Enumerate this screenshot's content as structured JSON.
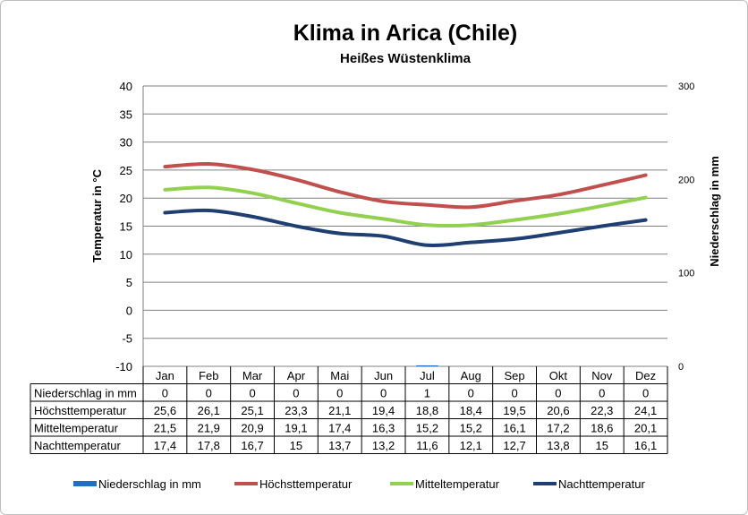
{
  "chart_data": {
    "type": "line",
    "title": "Klima in Arica (Chile)",
    "subtitle": "Heißes Wüstenklima",
    "ylabel_left": "Temperatur in °C",
    "ylabel_right": "Niederschlag in mm",
    "ylim_left": [
      -10,
      40
    ],
    "yticks_left": [
      "40",
      "35",
      "30",
      "25",
      "20",
      "15",
      "10",
      "5",
      "0",
      "-5",
      "-10"
    ],
    "ylim_right": [
      0,
      300
    ],
    "yticks_right": [
      "300",
      "200",
      "100",
      "0"
    ],
    "grid": true,
    "legend_position": "bottom",
    "categories": [
      "Jan",
      "Feb",
      "Mar",
      "Apr",
      "Mai",
      "Jun",
      "Jul",
      "Aug",
      "Sep",
      "Okt",
      "Nov",
      "Dez"
    ],
    "series": [
      {
        "name": "Niederschlag in mm",
        "kind": "bar",
        "axis": "right",
        "color": "#1f6fc5",
        "values": [
          0,
          0,
          0,
          0,
          0,
          0,
          1,
          0,
          0,
          0,
          0,
          0
        ]
      },
      {
        "name": "Höchsttemperatur",
        "kind": "line",
        "axis": "left",
        "color": "#c0504d",
        "values": [
          25.6,
          26.1,
          25.1,
          23.3,
          21.1,
          19.4,
          18.8,
          18.4,
          19.5,
          20.6,
          22.3,
          24.1
        ]
      },
      {
        "name": "Mitteltemperatur",
        "kind": "line",
        "axis": "left",
        "color": "#92d050",
        "values": [
          21.5,
          21.9,
          20.9,
          19.1,
          17.4,
          16.3,
          15.2,
          15.2,
          16.1,
          17.2,
          18.6,
          20.1
        ]
      },
      {
        "name": "Nachttemperatur",
        "kind": "line",
        "axis": "left",
        "color": "#1f3f73",
        "values": [
          17.4,
          17.8,
          16.7,
          15,
          13.7,
          13.2,
          11.6,
          12.1,
          12.7,
          13.8,
          15,
          16.1
        ]
      }
    ],
    "table_rows": [
      {
        "label": "Niederschlag in mm",
        "cells": [
          "0",
          "0",
          "0",
          "0",
          "0",
          "0",
          "1",
          "0",
          "0",
          "0",
          "0",
          "0"
        ]
      },
      {
        "label": "Höchsttemperatur",
        "cells": [
          "25,6",
          "26,1",
          "25,1",
          "23,3",
          "21,1",
          "19,4",
          "18,8",
          "18,4",
          "19,5",
          "20,6",
          "22,3",
          "24,1"
        ]
      },
      {
        "label": "Mitteltemperatur",
        "cells": [
          "21,5",
          "21,9",
          "20,9",
          "19,1",
          "17,4",
          "16,3",
          "15,2",
          "15,2",
          "16,1",
          "17,2",
          "18,6",
          "20,1"
        ]
      },
      {
        "label": "Nachttemperatur",
        "cells": [
          "17,4",
          "17,8",
          "16,7",
          "15",
          "13,7",
          "13,2",
          "11,6",
          "12,1",
          "12,7",
          "13,8",
          "15",
          "16,1"
        ]
      }
    ]
  }
}
